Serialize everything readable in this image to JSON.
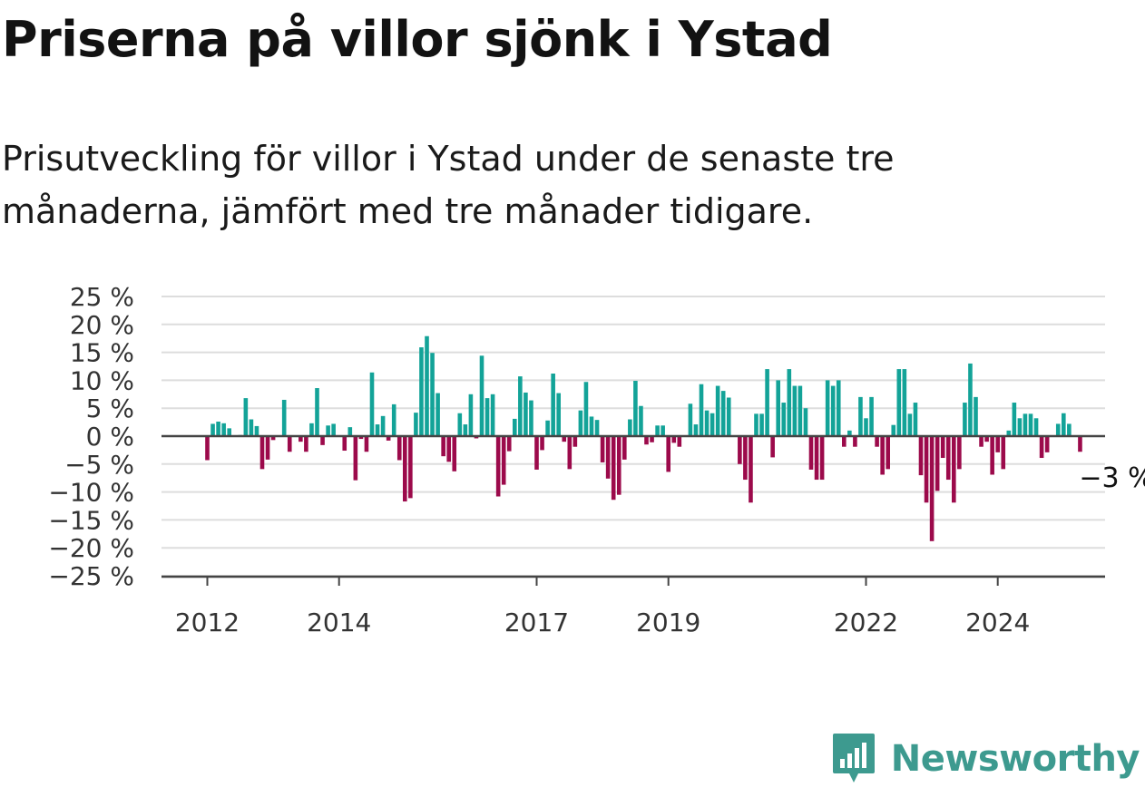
{
  "header": {
    "title": "Priserna på villor sjönk i Ystad",
    "subtitle": "Prisutveckling för villor i Ystad under de senaste tre månaderna, jämfört med tre månader tidigare."
  },
  "brand": {
    "name": "Newsworthy",
    "color": "#3d9a8f"
  },
  "chart_data": {
    "type": "bar",
    "title": "",
    "xlabel": "",
    "ylabel": "",
    "ylim": [
      -25,
      25
    ],
    "yticks": [
      25,
      20,
      15,
      10,
      5,
      0,
      -5,
      -10,
      -15,
      -20,
      -25
    ],
    "ytick_labels": [
      "25 %",
      "20 %",
      "15 %",
      "10 %",
      "5 %",
      "0 %",
      "−5 %",
      "−10 %",
      "−15 %",
      "−20 %",
      "−25 %"
    ],
    "xticks": [
      "2012",
      "2014",
      "2017",
      "2019",
      "2022",
      "2024"
    ],
    "x_start": "2012-01",
    "grid": true,
    "colors": {
      "positive": "#13a398",
      "negative": "#9c0a4b",
      "grid": "#dddddd",
      "axis": "#444444"
    },
    "end_label": "−3 %",
    "series": [
      {
        "values": [
          -4.3,
          2.2,
          2.6,
          2.3,
          1.4,
          0,
          0.2,
          6.8,
          3,
          1.8,
          -5.9,
          -4.2,
          -0.7,
          0,
          6.5,
          -2.8,
          0,
          -1,
          -2.8,
          2.3,
          8.6,
          -1.6,
          1.9,
          2.2,
          0,
          -2.6,
          1.6,
          -7.9,
          -0.5,
          -2.8,
          11.4,
          2.1,
          3.6,
          -0.8,
          5.7,
          -4.3,
          -11.7,
          -11.1,
          4.2,
          15.9,
          17.9,
          14.9,
          7.7,
          -3.6,
          -4.6,
          -6.3,
          4.1,
          2.1,
          7.5,
          -0.4,
          14.4,
          6.8,
          7.5,
          -10.8,
          -8.7,
          -2.7,
          3.1,
          10.7,
          7.8,
          6.4,
          -6,
          -2.5,
          2.8,
          11.2,
          7.7,
          -1,
          -5.9,
          -1.9,
          4.6,
          9.7,
          3.5,
          2.9,
          -4.7,
          -7.6,
          -11.4,
          -10.5,
          -4.2,
          3,
          9.9,
          5.4,
          -1.5,
          -1.1,
          1.9,
          1.9,
          -6.4,
          -1.2,
          -1.9,
          0,
          5.8,
          2.1,
          9.3,
          4.6,
          4.1,
          9,
          8.1,
          6.9,
          0,
          -5,
          -7.8,
          -11.9,
          4,
          4,
          12,
          -3.8,
          10,
          6,
          12,
          9,
          9,
          5,
          -6,
          -7.8,
          -7.8,
          10,
          9,
          10,
          -1.9,
          1,
          -1.9,
          7,
          3.2,
          7,
          -1.9,
          -6.9,
          -5.9,
          2,
          12,
          12,
          4,
          6,
          -7,
          -11.9,
          -18.8,
          -9.8,
          -3.9,
          -7.8,
          -11.9,
          -5.9,
          6,
          13,
          7,
          -1.9,
          -1,
          -6.9,
          -2.9,
          -5.9,
          1,
          6,
          3.2,
          4,
          4,
          3.2,
          -3.9,
          -2.9,
          0,
          2.2,
          4.1,
          2.2,
          0,
          -2.8
        ]
      }
    ]
  }
}
